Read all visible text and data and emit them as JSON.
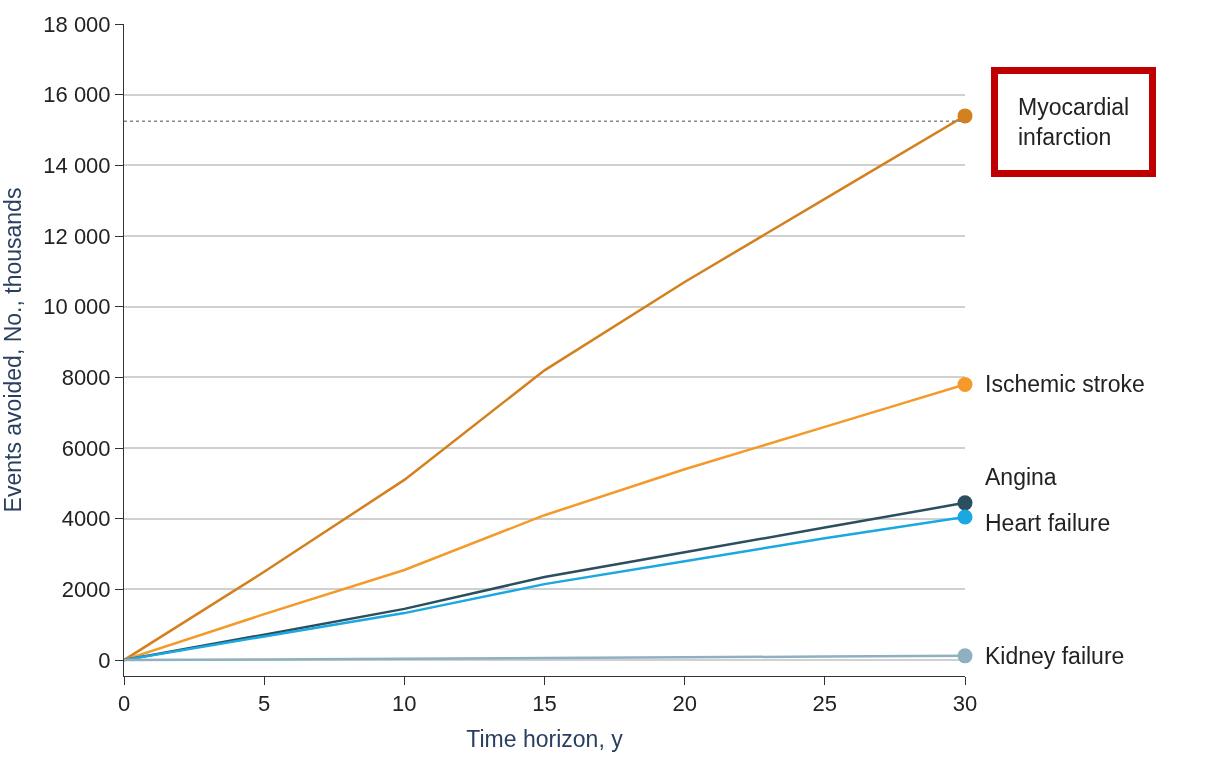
{
  "chart_data": {
    "type": "line",
    "xlabel": "Time horizon, y",
    "ylabel": "Events avoided, No., thousands",
    "x": [
      0,
      5,
      10,
      15,
      20,
      25,
      30
    ],
    "series": [
      {
        "name": "Myocardial infarction",
        "color": "#d4801e",
        "values": [
          0,
          2500,
          5100,
          8200,
          10700,
          13050,
          15400
        ]
      },
      {
        "name": "Ischemic stroke",
        "color": "#f39a2a",
        "values": [
          0,
          1300,
          2550,
          4100,
          5400,
          6600,
          7800
        ]
      },
      {
        "name": "Angina",
        "color": "#2b4f5e",
        "values": [
          0,
          720,
          1450,
          2350,
          3050,
          3750,
          4450
        ]
      },
      {
        "name": "Heart failure",
        "color": "#1aa8e0",
        "values": [
          0,
          670,
          1330,
          2150,
          2800,
          3450,
          4050
        ]
      },
      {
        "name": "Kidney failure",
        "color": "#8fb0c0",
        "values": [
          0,
          20,
          40,
          60,
          80,
          100,
          120
        ]
      }
    ],
    "xlim": [
      0,
      30
    ],
    "xticks": [
      0,
      5,
      10,
      15,
      20,
      25,
      30
    ],
    "ylim": [
      -450,
      18000
    ],
    "yticks": [
      0,
      2000,
      4000,
      6000,
      8000,
      {
        "value": 10000,
        "label": "10 000"
      },
      {
        "value": 12000,
        "label": "12 000"
      },
      {
        "value": 14000,
        "label": "14 000"
      },
      {
        "value": 16000,
        "label": "16 000"
      },
      {
        "value": 18000,
        "label": "18 000"
      }
    ],
    "ref_lines": [
      {
        "axis": "y",
        "value": 15250,
        "color": "#888888",
        "line_style": "dotted"
      }
    ],
    "grid": "y",
    "legend": false
  }
}
